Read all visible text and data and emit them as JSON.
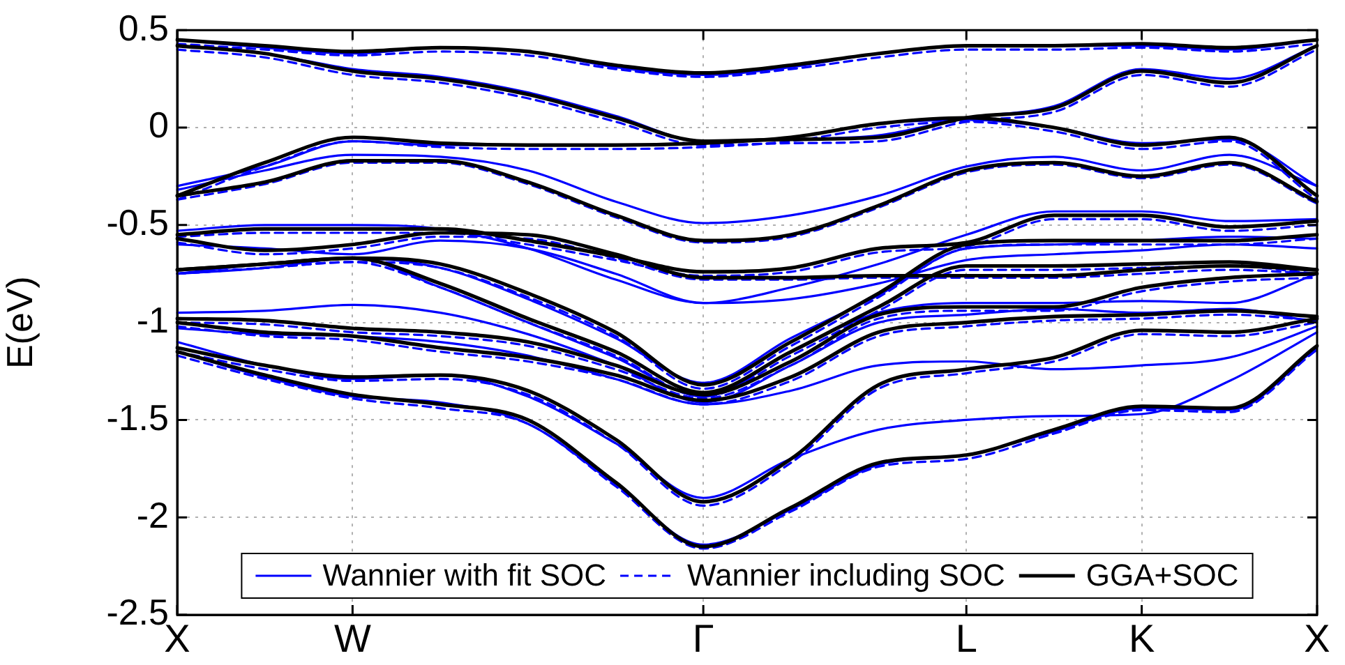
{
  "chart_data": {
    "type": "line",
    "ylabel": "E(eV)",
    "categories": [
      "X",
      null,
      "W",
      null,
      null,
      null,
      "Γ",
      null,
      null,
      "L",
      null,
      "K",
      null,
      "X"
    ],
    "ylim": [
      -2.5,
      0.5
    ],
    "yticks": [
      -2.5,
      -2,
      -1.5,
      -1,
      -0.5,
      0,
      0.5
    ],
    "grid": true,
    "legend": "bottom",
    "marker": "none",
    "series": [
      {
        "name": "Wannier with fit SOC",
        "color": "#0000ff",
        "line_style": "solid",
        "values": [
          0.45,
          0.41,
          0.38,
          0.41,
          0.39,
          0.31,
          0.27,
          0.31,
          0.38,
          0.42,
          0.42,
          0.42,
          0.4,
          0.45
        ]
      },
      {
        "color": "#0000ff",
        "line_style": "solid",
        "values": [
          0.42,
          0.38,
          0.3,
          0.26,
          0.18,
          0.06,
          -0.07,
          -0.06,
          -0.04,
          0.05,
          0.11,
          0.3,
          0.25,
          0.42
        ]
      },
      {
        "color": "#0000ff",
        "line_style": "solid",
        "values": [
          -0.3,
          -0.2,
          -0.07,
          -0.09,
          -0.09,
          -0.09,
          -0.08,
          -0.05,
          0.02,
          0.04,
          0,
          -0.08,
          -0.06,
          -0.3
        ]
      },
      {
        "color": "#0000ff",
        "line_style": "solid",
        "values": [
          -0.32,
          -0.22,
          -0.14,
          -0.15,
          -0.22,
          -0.38,
          -0.49,
          -0.45,
          -0.35,
          -0.2,
          -0.15,
          -0.22,
          -0.14,
          -0.3
        ]
      },
      {
        "color": "#0000ff",
        "line_style": "solid",
        "values": [
          -0.53,
          -0.5,
          -0.5,
          -0.52,
          -0.62,
          -0.78,
          -0.9,
          -0.82,
          -0.7,
          -0.55,
          -0.43,
          -0.43,
          -0.48,
          -0.47
        ]
      },
      {
        "color": "#0000ff",
        "line_style": "solid",
        "values": [
          -0.6,
          -0.62,
          -0.65,
          -0.58,
          -0.62,
          -0.75,
          -0.9,
          -0.88,
          -0.8,
          -0.68,
          -0.65,
          -0.63,
          -0.6,
          -0.62
        ]
      },
      {
        "color": "#0000ff",
        "line_style": "solid",
        "values": [
          -0.75,
          -0.72,
          -0.67,
          -0.72,
          -0.88,
          -1.08,
          -1.31,
          -1.08,
          -0.86,
          -0.62,
          -0.6,
          -0.58,
          -0.56,
          -0.57
        ]
      },
      {
        "color": "#0000ff",
        "line_style": "solid",
        "values": [
          -0.75,
          -0.7,
          -0.67,
          -0.82,
          -1.0,
          -1.18,
          -1.38,
          -1.15,
          -0.95,
          -0.9,
          -0.9,
          -0.89,
          -0.9,
          -0.75
        ]
      },
      {
        "color": "#0000ff",
        "line_style": "solid",
        "values": [
          -0.95,
          -0.94,
          -0.91,
          -0.95,
          -1.06,
          -1.22,
          -1.41,
          -1.22,
          -1.0,
          -0.96,
          -0.93,
          -0.95,
          -0.93,
          -1.0
        ]
      },
      {
        "color": "#0000ff",
        "line_style": "solid",
        "values": [
          -1.03,
          -1.06,
          -1.07,
          -1.1,
          -1.17,
          -1.29,
          -1.42,
          -1.35,
          -1.22,
          -1.2,
          -1.24,
          -1.22,
          -1.18,
          -1.02
        ]
      },
      {
        "color": "#0000ff",
        "line_style": "solid",
        "values": [
          -1.1,
          -1.22,
          -1.29,
          -1.27,
          -1.38,
          -1.62,
          -1.9,
          -1.7,
          -1.55,
          -1.5,
          -1.48,
          -1.47,
          -1.3,
          -1.05
        ]
      },
      {
        "color": "#0000ff",
        "line_style": "solid",
        "values": [
          -1.15,
          -1.28,
          -1.38,
          -1.41,
          -1.52,
          -1.83,
          -2.14,
          -1.96,
          -1.73,
          -1.68,
          -1.56,
          -1.44,
          -1.45,
          -1.13
        ]
      },
      {
        "name": "Wannier including SOC",
        "color": "#0000ff",
        "line_style": "dashed",
        "values": [
          0.43,
          0.4,
          0.37,
          0.39,
          0.37,
          0.3,
          0.26,
          0.3,
          0.36,
          0.4,
          0.4,
          0.41,
          0.39,
          0.43
        ]
      },
      {
        "color": "#0000ff",
        "line_style": "dashed",
        "values": [
          0.4,
          0.36,
          0.27,
          0.23,
          0.15,
          0.03,
          -0.09,
          -0.08,
          -0.07,
          0.03,
          0.08,
          0.27,
          0.21,
          0.4
        ]
      },
      {
        "color": "#0000ff",
        "line_style": "dashed",
        "values": [
          -0.37,
          -0.2,
          -0.07,
          -0.1,
          -0.11,
          -0.11,
          -0.1,
          -0.07,
          0.0,
          0.03,
          -0.02,
          -0.11,
          -0.07,
          -0.37
        ]
      },
      {
        "color": "#0000ff",
        "line_style": "dashed",
        "values": [
          -0.37,
          -0.29,
          -0.18,
          -0.18,
          -0.29,
          -0.46,
          -0.59,
          -0.56,
          -0.41,
          -0.23,
          -0.19,
          -0.26,
          -0.19,
          -0.39
        ]
      },
      {
        "color": "#0000ff",
        "line_style": "dashed",
        "values": [
          -0.56,
          -0.54,
          -0.54,
          -0.54,
          -0.6,
          -0.68,
          -0.76,
          -0.74,
          -0.64,
          -0.61,
          -0.47,
          -0.47,
          -0.53,
          -0.5
        ]
      },
      {
        "color": "#0000ff",
        "line_style": "dashed",
        "values": [
          -0.59,
          -0.65,
          -0.62,
          -0.56,
          -0.57,
          -0.67,
          -0.78,
          -0.78,
          -0.77,
          -0.77,
          -0.77,
          -0.75,
          -0.73,
          -0.75
        ]
      },
      {
        "color": "#0000ff",
        "line_style": "dashed",
        "values": [
          -0.75,
          -0.72,
          -0.69,
          -0.72,
          -0.87,
          -1.07,
          -1.34,
          -1.12,
          -0.87,
          -0.62,
          -0.6,
          -0.6,
          -0.6,
          -0.57
        ]
      },
      {
        "color": "#0000ff",
        "line_style": "dashed",
        "values": [
          -0.75,
          -0.72,
          -0.69,
          -0.82,
          -1.0,
          -1.17,
          -1.38,
          -1.17,
          -0.94,
          -0.73,
          -0.73,
          -0.72,
          -0.71,
          -0.75
        ]
      },
      {
        "color": "#0000ff",
        "line_style": "dashed",
        "values": [
          -1.0,
          -1.01,
          -1.05,
          -1.07,
          -1.12,
          -1.24,
          -1.39,
          -1.22,
          -0.98,
          -0.94,
          -0.94,
          -0.84,
          -0.79,
          -0.77
        ]
      },
      {
        "color": "#0000ff",
        "line_style": "dashed",
        "values": [
          -1.02,
          -1.07,
          -1.09,
          -1.15,
          -1.2,
          -1.29,
          -1.42,
          -1.3,
          -1.07,
          -1.02,
          -0.99,
          -0.98,
          -0.96,
          -0.99
        ]
      },
      {
        "color": "#0000ff",
        "line_style": "dashed",
        "values": [
          -1.15,
          -1.24,
          -1.3,
          -1.29,
          -1.37,
          -1.62,
          -1.94,
          -1.72,
          -1.34,
          -1.26,
          -1.2,
          -1.06,
          -1.07,
          -1.0
        ]
      },
      {
        "color": "#0000ff",
        "line_style": "dashed",
        "values": [
          -1.17,
          -1.29,
          -1.39,
          -1.44,
          -1.52,
          -1.84,
          -2.16,
          -1.97,
          -1.74,
          -1.7,
          -1.57,
          -1.45,
          -1.46,
          -1.14
        ]
      },
      {
        "name": "GGA+SOC",
        "color": "#000000",
        "line_style": "solid",
        "values": [
          0.45,
          0.42,
          0.39,
          0.41,
          0.39,
          0.32,
          0.28,
          0.32,
          0.38,
          0.42,
          0.42,
          0.43,
          0.41,
          0.45
        ]
      },
      {
        "color": "#000000",
        "line_style": "solid",
        "values": [
          0.42,
          0.38,
          0.29,
          0.25,
          0.17,
          0.05,
          -0.07,
          -0.06,
          -0.05,
          0.05,
          0.1,
          0.29,
          0.23,
          0.42
        ]
      },
      {
        "color": "#000000",
        "line_style": "solid",
        "values": [
          -0.35,
          -0.18,
          -0.05,
          -0.08,
          -0.09,
          -0.09,
          -0.08,
          -0.05,
          0.02,
          0.05,
          0,
          -0.09,
          -0.05,
          -0.35
        ]
      },
      {
        "color": "#000000",
        "line_style": "solid",
        "values": [
          -0.35,
          -0.28,
          -0.17,
          -0.17,
          -0.28,
          -0.45,
          -0.58,
          -0.55,
          -0.4,
          -0.22,
          -0.18,
          -0.25,
          -0.18,
          -0.38
        ]
      },
      {
        "color": "#000000",
        "line_style": "solid",
        "values": [
          -0.55,
          -0.52,
          -0.52,
          -0.52,
          -0.58,
          -0.66,
          -0.74,
          -0.72,
          -0.62,
          -0.59,
          -0.45,
          -0.45,
          -0.51,
          -0.48
        ]
      },
      {
        "color": "#000000",
        "line_style": "solid",
        "values": [
          -0.57,
          -0.63,
          -0.6,
          -0.54,
          -0.55,
          -0.65,
          -0.77,
          -0.77,
          -0.76,
          -0.76,
          -0.76,
          -0.73,
          -0.71,
          -0.73
        ]
      },
      {
        "color": "#000000",
        "line_style": "solid",
        "values": [
          -0.73,
          -0.7,
          -0.67,
          -0.7,
          -0.85,
          -1.05,
          -1.32,
          -1.1,
          -0.85,
          -0.6,
          -0.58,
          -0.58,
          -0.58,
          -0.55
        ]
      },
      {
        "color": "#000000",
        "line_style": "solid",
        "values": [
          -0.73,
          -0.7,
          -0.67,
          -0.8,
          -0.98,
          -1.15,
          -1.36,
          -1.15,
          -0.92,
          -0.71,
          -0.71,
          -0.7,
          -0.69,
          -0.73
        ]
      },
      {
        "color": "#000000",
        "line_style": "solid",
        "values": [
          -0.98,
          -0.99,
          -1.03,
          -1.05,
          -1.1,
          -1.22,
          -1.37,
          -1.2,
          -0.96,
          -0.92,
          -0.92,
          -0.82,
          -0.77,
          -0.75
        ]
      },
      {
        "color": "#000000",
        "line_style": "solid",
        "values": [
          -1.0,
          -1.05,
          -1.07,
          -1.13,
          -1.18,
          -1.27,
          -1.4,
          -1.28,
          -1.05,
          -1.0,
          -0.97,
          -0.96,
          -0.94,
          -0.97
        ]
      },
      {
        "color": "#000000",
        "line_style": "solid",
        "values": [
          -1.13,
          -1.22,
          -1.28,
          -1.27,
          -1.35,
          -1.6,
          -1.92,
          -1.7,
          -1.32,
          -1.24,
          -1.18,
          -1.04,
          -1.05,
          -0.98
        ]
      },
      {
        "color": "#000000",
        "line_style": "solid",
        "values": [
          -1.15,
          -1.27,
          -1.37,
          -1.42,
          -1.5,
          -1.82,
          -2.15,
          -1.95,
          -1.72,
          -1.68,
          -1.55,
          -1.43,
          -1.44,
          -1.12
        ]
      }
    ]
  }
}
